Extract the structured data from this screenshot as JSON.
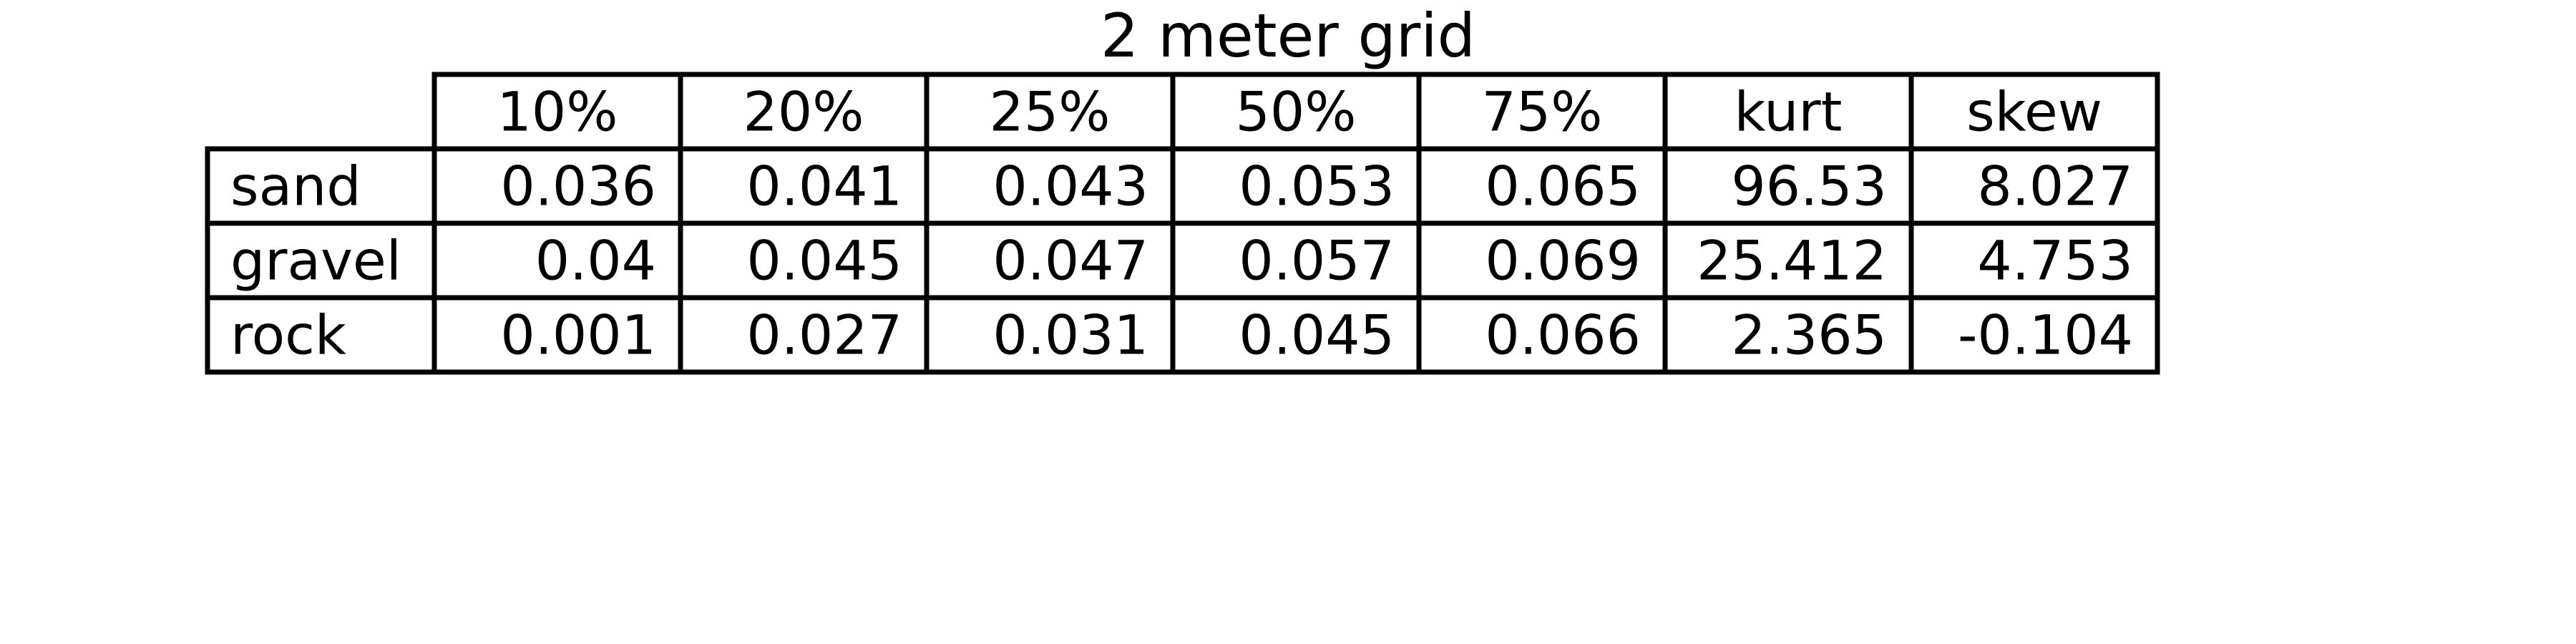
{
  "chart_data": {
    "type": "table",
    "title": "2 meter grid",
    "columns": [
      "10%",
      "20%",
      "25%",
      "50%",
      "75%",
      "kurt",
      "skew"
    ],
    "rows": [
      {
        "label": "sand",
        "values": [
          "0.036",
          "0.041",
          "0.043",
          "0.053",
          "0.065",
          "96.53",
          "8.027"
        ]
      },
      {
        "label": "gravel",
        "values": [
          "0.04",
          "0.045",
          "0.047",
          "0.057",
          "0.069",
          "25.412",
          "4.753"
        ]
      },
      {
        "label": "rock",
        "values": [
          "0.001",
          "0.027",
          "0.031",
          "0.045",
          "0.066",
          "2.365",
          "-0.104"
        ]
      }
    ]
  }
}
